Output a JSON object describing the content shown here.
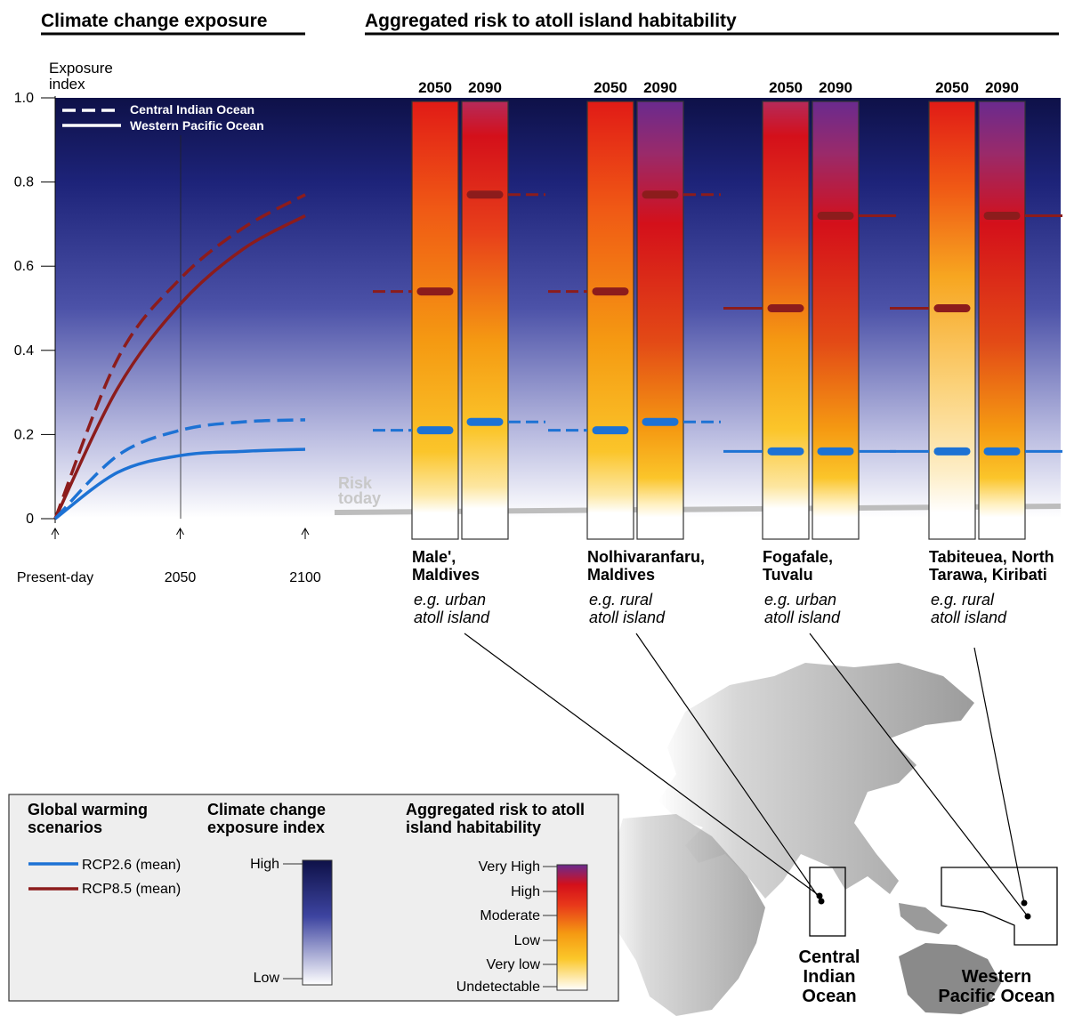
{
  "headers": {
    "left": "Climate change exposure",
    "right": "Aggregated risk to atoll island habitability"
  },
  "legend_top": {
    "dashed": "Central Indian Ocean",
    "solid": "Western Pacific Ocean"
  },
  "chart_data": [
    {
      "type": "line",
      "title": "Climate change exposure",
      "ylabel": "Exposure index",
      "ylabel_lines": [
        "Exposure",
        "index"
      ],
      "ylim": [
        0,
        1
      ],
      "yticks": [
        "1.0",
        "0.8",
        "0.6",
        "0.4",
        "0.2",
        "0"
      ],
      "ytick_values": [
        1.0,
        0.8,
        0.6,
        0.4,
        0.2,
        0
      ],
      "x_ticks": [
        {
          "label": "Present-day",
          "x": 0
        },
        {
          "label": "2050",
          "x": 0.5
        },
        {
          "label": "2100",
          "x": 1
        }
      ],
      "series": [
        {
          "scenario": "RCP8.5 (mean)",
          "region": "Central Indian Ocean",
          "style": "dashed",
          "color": "#8c1c1c",
          "x": [
            0,
            0.25,
            0.5,
            0.75,
            1
          ],
          "y": [
            0,
            0.38,
            0.57,
            0.69,
            0.77
          ]
        },
        {
          "scenario": "RCP8.5 (mean)",
          "region": "Western Pacific Ocean",
          "style": "solid",
          "color": "#8c1c1c",
          "x": [
            0,
            0.25,
            0.5,
            0.75,
            1
          ],
          "y": [
            0,
            0.31,
            0.51,
            0.64,
            0.72
          ]
        },
        {
          "scenario": "RCP2.6 (mean)",
          "region": "Central Indian Ocean",
          "style": "dashed",
          "color": "#1d72d4",
          "x": [
            0,
            0.25,
            0.5,
            0.75,
            1
          ],
          "y": [
            0,
            0.15,
            0.21,
            0.23,
            0.235
          ]
        },
        {
          "scenario": "RCP2.6 (mean)",
          "region": "Western Pacific Ocean",
          "style": "solid",
          "color": "#1d72d4",
          "x": [
            0,
            0.25,
            0.5,
            0.75,
            1
          ],
          "y": [
            0,
            0.11,
            0.15,
            0.16,
            0.165
          ]
        }
      ]
    },
    {
      "type": "bar",
      "title": "Aggregated risk to atoll island habitability",
      "risk_today_label": [
        "Risk",
        "today"
      ],
      "risk_levels": [
        "Undetectable",
        "Very low",
        "Low",
        "Moderate",
        "High",
        "Very High"
      ],
      "islands": [
        {
          "name": [
            "Male',",
            "Maldives"
          ],
          "example": [
            "e.g. urban",
            "atoll island"
          ],
          "region": "Central Indian Ocean",
          "bars": [
            {
              "year": "2050",
              "rcp26": 0.21,
              "rcp85": 0.54,
              "risk_profile": "moderate"
            },
            {
              "year": "2090",
              "rcp26": 0.23,
              "rcp85": 0.77,
              "risk_profile": "high"
            }
          ]
        },
        {
          "name": [
            "Nolhivaranfaru,",
            "Maldives"
          ],
          "example": [
            "e.g. rural",
            "atoll island"
          ],
          "region": "Central Indian Ocean",
          "bars": [
            {
              "year": "2050",
              "rcp26": 0.21,
              "rcp85": 0.54,
              "risk_profile": "moderate"
            },
            {
              "year": "2090",
              "rcp26": 0.23,
              "rcp85": 0.77,
              "risk_profile": "very_high"
            }
          ]
        },
        {
          "name": [
            "Fogafale,",
            "Tuvalu"
          ],
          "example": [
            "e.g. urban",
            "atoll island"
          ],
          "region": "Western Pacific Ocean",
          "bars": [
            {
              "year": "2050",
              "rcp26": 0.16,
              "rcp85": 0.5,
              "risk_profile": "high"
            },
            {
              "year": "2090",
              "rcp26": 0.16,
              "rcp85": 0.72,
              "risk_profile": "very_high"
            }
          ]
        },
        {
          "name": [
            "Tabiteuea, North",
            "Tarawa, Kiribati"
          ],
          "example": [
            "e.g. rural",
            "atoll island"
          ],
          "region": "Western Pacific Ocean",
          "bars": [
            {
              "year": "2050",
              "rcp26": 0.16,
              "rcp85": 0.5,
              "risk_profile": "low"
            },
            {
              "year": "2090",
              "rcp26": 0.16,
              "rcp85": 0.72,
              "risk_profile": "very_high"
            }
          ]
        }
      ]
    }
  ],
  "legend_box": {
    "scenarios_title": [
      "Global warming",
      "scenarios"
    ],
    "scenarios": [
      {
        "label": "RCP2.6 (mean)",
        "color": "#1d72d4"
      },
      {
        "label": "RCP8.5 (mean)",
        "color": "#8c1c1c"
      }
    ],
    "exposure_title": [
      "Climate change",
      "exposure index"
    ],
    "exposure_high": "High",
    "exposure_low": "Low",
    "risk_title": [
      "Aggregated risk to atoll",
      "island habitability"
    ],
    "risk_levels": [
      "Very High",
      "High",
      "Moderate",
      "Low",
      "Very low",
      "Undetectable"
    ]
  },
  "map": {
    "region_cio": [
      "Central",
      "Indian",
      "Ocean"
    ],
    "region_wpo": [
      "Western",
      "Pacific Ocean"
    ]
  },
  "colors": {
    "rcp26": "#1d72d4",
    "rcp85": "#8c1c1c",
    "exposure_high": "#0d0f45",
    "risk_today": "#bdbdbd"
  }
}
